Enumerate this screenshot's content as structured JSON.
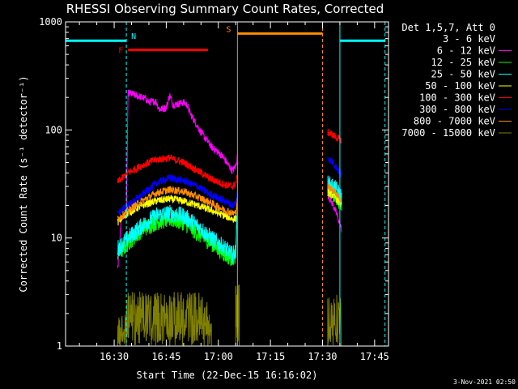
{
  "chart_data": {
    "type": "line",
    "title": "RHESSI Observing Summary Count Rates, Corrected",
    "xlabel": "Start Time (22-Dec-15 16:16:02)",
    "ylabel": "Corrected Count Rate (s⁻¹ detector⁻¹)",
    "yscale": "log",
    "ylim": [
      1,
      1000
    ],
    "xlim_minutes": [
      16.0,
      109.0
    ],
    "x_ticks": [
      {
        "label": "16:30",
        "min": 30
      },
      {
        "label": "16:45",
        "min": 45
      },
      {
        "label": "17:00",
        "min": 60
      },
      {
        "label": "17:15",
        "min": 75
      },
      {
        "label": "17:30",
        "min": 90
      },
      {
        "label": "17:45",
        "min": 105
      }
    ],
    "y_ticks": [
      {
        "label": "1",
        "value": 1
      },
      {
        "label": "10",
        "value": 10
      },
      {
        "label": "100",
        "value": 100
      },
      {
        "label": "1000",
        "value": 1000
      }
    ],
    "legend_header": "Det 1,5,7, Att 0",
    "legend_position": "right",
    "series": [
      {
        "name": "3 - 6 keV",
        "color": "#000000"
      },
      {
        "name": "6 - 12 keV",
        "color": "#ff00ff"
      },
      {
        "name": "12 - 25 keV",
        "color": "#00ff00"
      },
      {
        "name": "25 - 50 keV",
        "color": "#00ffff"
      },
      {
        "name": "50 - 100 keV",
        "color": "#ffff00"
      },
      {
        "name": "100 - 300 keV",
        "color": "#ff0000"
      },
      {
        "name": "300 - 800 keV",
        "color": "#0000ff"
      },
      {
        "name": "800 - 7000 keV",
        "color": "#ff8c00"
      },
      {
        "name": "7000 - 15000 keV",
        "color": "#808000"
      }
    ],
    "segments": [
      {
        "start": 33.5,
        "end": 65.5
      },
      {
        "start": 91.5,
        "end": 95.5
      }
    ],
    "profiles": [
      {
        "name": "3 - 6 keV",
        "pts": [
          [
            31,
            14
          ],
          [
            32,
            17
          ],
          [
            33.5,
            18
          ],
          [
            34,
            210
          ],
          [
            36,
            185
          ],
          [
            40,
            170
          ],
          [
            45,
            160
          ],
          [
            50,
            150
          ],
          [
            55,
            120
          ],
          [
            58,
            90
          ],
          [
            61,
            62
          ],
          [
            64,
            52
          ],
          [
            65,
            60
          ],
          [
            65.5,
            75
          ]
        ],
        "seg2": [
          [
            91.5,
            90
          ],
          [
            93,
            85
          ],
          [
            94,
            85
          ],
          [
            95.5,
            55
          ]
        ]
      },
      {
        "name": "6 - 12 keV",
        "pts": [
          [
            31,
            5
          ],
          [
            32,
            15
          ],
          [
            33.5,
            17
          ],
          [
            34,
            220
          ],
          [
            37,
            205
          ],
          [
            39,
            195
          ],
          [
            40,
            180
          ],
          [
            42,
            185
          ],
          [
            43,
            155
          ],
          [
            45,
            160
          ],
          [
            46,
            210
          ],
          [
            47,
            170
          ],
          [
            50,
            180
          ],
          [
            51,
            170
          ],
          [
            52,
            140
          ],
          [
            55,
            95
          ],
          [
            58,
            70
          ],
          [
            61,
            58
          ],
          [
            64,
            42
          ],
          [
            65,
            46
          ],
          [
            65.5,
            58
          ]
        ],
        "seg2": [
          [
            91.5,
            25
          ],
          [
            92.5,
            22
          ],
          [
            94,
            17
          ],
          [
            95.5,
            12
          ]
        ]
      },
      {
        "name": "12 - 25 keV",
        "pts": [
          [
            31,
            7
          ],
          [
            34,
            9
          ],
          [
            38,
            12
          ],
          [
            42,
            14
          ],
          [
            46,
            15
          ],
          [
            50,
            14
          ],
          [
            54,
            11
          ],
          [
            58,
            9
          ],
          [
            62,
            7
          ],
          [
            64,
            6.5
          ],
          [
            65,
            7
          ],
          [
            65.5,
            18
          ]
        ],
        "seg2": [
          [
            91.5,
            28
          ],
          [
            93,
            26
          ],
          [
            94,
            24
          ],
          [
            95.5,
            20
          ]
        ]
      },
      {
        "name": "25 - 50 keV",
        "pts": [
          [
            31,
            8
          ],
          [
            34,
            10
          ],
          [
            38,
            13
          ],
          [
            42,
            16
          ],
          [
            46,
            17
          ],
          [
            50,
            16
          ],
          [
            54,
            13
          ],
          [
            58,
            10
          ],
          [
            62,
            8
          ],
          [
            64,
            7
          ],
          [
            65,
            7.5
          ],
          [
            65.5,
            20
          ]
        ],
        "seg2": [
          [
            91.5,
            32
          ],
          [
            93,
            30
          ],
          [
            94,
            28
          ],
          [
            95.5,
            24
          ]
        ]
      },
      {
        "name": "50 - 100 keV",
        "pts": [
          [
            31,
            14
          ],
          [
            34,
            17
          ],
          [
            38,
            20
          ],
          [
            42,
            22
          ],
          [
            46,
            23
          ],
          [
            50,
            22
          ],
          [
            54,
            20
          ],
          [
            58,
            18
          ],
          [
            62,
            16
          ],
          [
            64,
            15
          ],
          [
            65,
            15
          ],
          [
            65.5,
            24
          ]
        ],
        "seg2": [
          [
            91.5,
            26
          ],
          [
            93,
            25
          ],
          [
            94,
            23
          ],
          [
            95.5,
            20
          ]
        ]
      },
      {
        "name": "100 - 300 keV",
        "pts": [
          [
            31,
            33
          ],
          [
            34,
            40
          ],
          [
            38,
            47
          ],
          [
            42,
            53
          ],
          [
            46,
            55
          ],
          [
            50,
            50
          ],
          [
            54,
            42
          ],
          [
            58,
            35
          ],
          [
            62,
            31
          ],
          [
            64,
            30
          ],
          [
            65,
            32
          ],
          [
            65.5,
            38
          ]
        ],
        "seg2": [
          [
            91.5,
            95
          ],
          [
            93,
            90
          ],
          [
            94,
            85
          ],
          [
            95.5,
            80
          ]
        ]
      },
      {
        "name": "300 - 800 keV",
        "pts": [
          [
            31,
            17
          ],
          [
            34,
            20
          ],
          [
            38,
            25
          ],
          [
            42,
            32
          ],
          [
            46,
            36
          ],
          [
            50,
            34
          ],
          [
            54,
            30
          ],
          [
            58,
            25
          ],
          [
            62,
            22
          ],
          [
            64,
            20
          ],
          [
            65,
            21
          ],
          [
            65.5,
            26
          ]
        ],
        "seg2": [
          [
            91.5,
            55
          ],
          [
            93,
            50
          ],
          [
            94,
            45
          ],
          [
            95.5,
            38
          ]
        ]
      },
      {
        "name": "800 - 7000 keV",
        "pts": [
          [
            31,
            15
          ],
          [
            34,
            18
          ],
          [
            38,
            22
          ],
          [
            42,
            26
          ],
          [
            46,
            28
          ],
          [
            50,
            27
          ],
          [
            54,
            24
          ],
          [
            58,
            21
          ],
          [
            62,
            18
          ],
          [
            64,
            17
          ],
          [
            65,
            17
          ],
          [
            65.5,
            22
          ]
        ],
        "seg2": [
          [
            91.5,
            30
          ],
          [
            93,
            28
          ],
          [
            94,
            26
          ],
          [
            95.5,
            22
          ]
        ]
      }
    ],
    "flags": [
      {
        "label": "N",
        "color": "#00ffff",
        "y": 670
      },
      {
        "label": "F",
        "color": "#ff0000",
        "y": 550
      },
      {
        "label": "S",
        "color": "#ff8c00",
        "y": 780
      }
    ],
    "flag_segments": [
      {
        "flag": "N",
        "start": 16.0,
        "end": 33.5
      },
      {
        "flag": "N",
        "start": 95.0,
        "end": 108.0
      },
      {
        "flag": "F",
        "start": 34.0,
        "end": 57.0
      },
      {
        "flag": "S",
        "start": 65.5,
        "end": 90.0
      }
    ],
    "vertical_lines": [
      {
        "min": 16.0,
        "color": "#00ffff",
        "style": "solid"
      },
      {
        "min": 33.5,
        "color": "#00ffff",
        "style": "dashed"
      },
      {
        "min": 65.5,
        "color": "#ff8c00",
        "style": "solid"
      },
      {
        "min": 90.0,
        "color": "#ff8c00",
        "style": "dashed"
      },
      {
        "min": 95.0,
        "color": "#00ffff",
        "style": "solid"
      },
      {
        "min": 108.0,
        "color": "#00ffff",
        "style": "dashed"
      }
    ]
  },
  "footer": {
    "timestamp": "3-Nov-2021 02:50"
  }
}
